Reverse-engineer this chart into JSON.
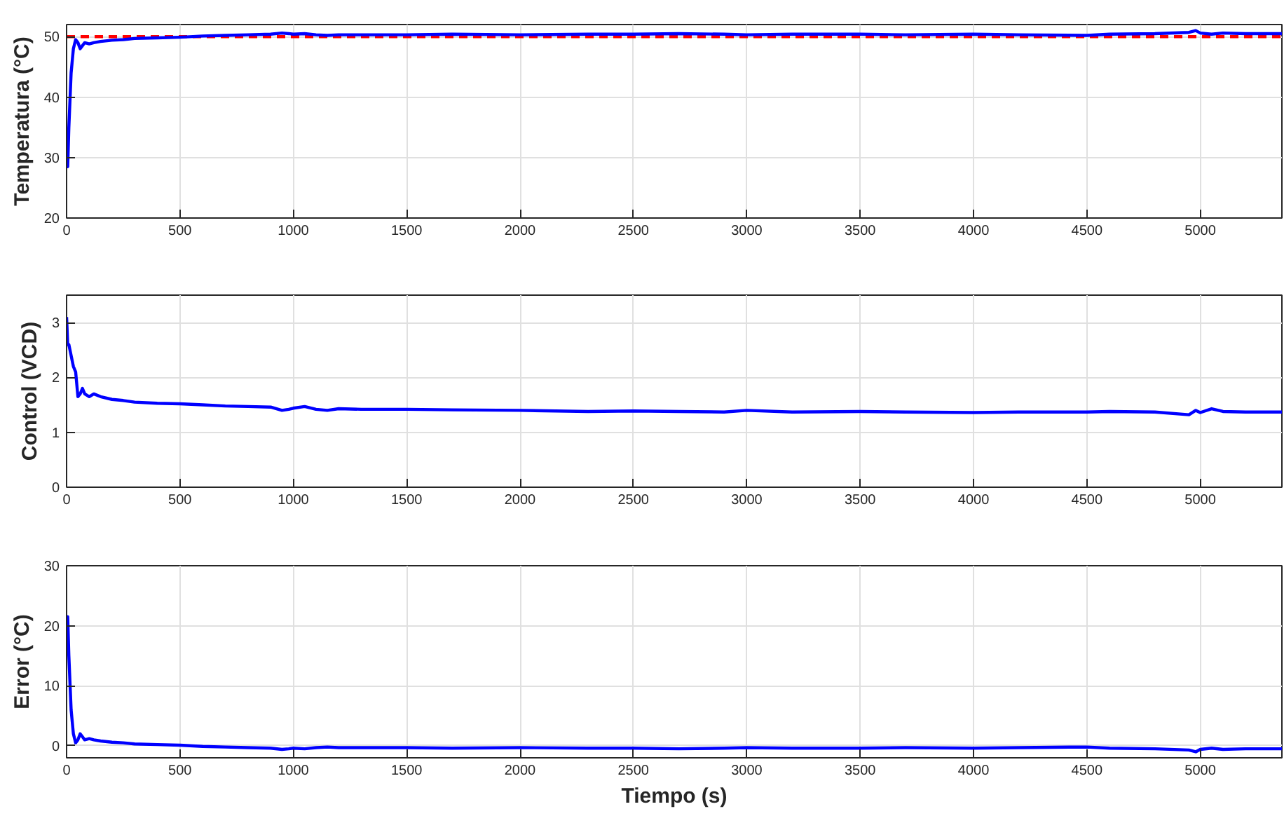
{
  "chart_data": [
    {
      "type": "line",
      "ylabel": "Temperatura (°C)",
      "xlim": [
        0,
        5360
      ],
      "xticks": [
        0,
        500,
        1000,
        1500,
        2000,
        2500,
        3000,
        3500,
        4000,
        4500,
        5000
      ],
      "ylim": [
        20,
        52
      ],
      "yticks": [
        20,
        30,
        40,
        50
      ],
      "grid": true,
      "series": [
        {
          "color": "#ff0000",
          "line_style": "dashed",
          "x": [
            0,
            5360
          ],
          "values": [
            50,
            50
          ]
        },
        {
          "color": "#0000ff",
          "line_style": "solid",
          "x": [
            0,
            5,
            10,
            20,
            30,
            40,
            50,
            60,
            70,
            80,
            100,
            120,
            150,
            200,
            250,
            300,
            400,
            500,
            600,
            700,
            800,
            900,
            950,
            980,
            1000,
            1050,
            1100,
            1150,
            1200,
            1300,
            1500,
            1700,
            2000,
            2300,
            2500,
            2700,
            2900,
            3000,
            3200,
            3500,
            3700,
            4000,
            4200,
            4500,
            4600,
            4800,
            4950,
            4980,
            5000,
            5050,
            5100,
            5200,
            5360
          ],
          "values": [
            29,
            28.5,
            35,
            44,
            48,
            49.5,
            49,
            48,
            48.5,
            49,
            48.8,
            49,
            49.2,
            49.4,
            49.5,
            49.7,
            49.8,
            49.9,
            50.1,
            50.2,
            50.3,
            50.4,
            50.6,
            50.5,
            50.4,
            50.5,
            50.3,
            50.2,
            50.3,
            50.3,
            50.3,
            50.4,
            50.3,
            50.4,
            50.4,
            50.5,
            50.4,
            50.3,
            50.4,
            50.4,
            50.3,
            50.4,
            50.3,
            50.2,
            50.4,
            50.5,
            50.7,
            51,
            50.6,
            50.4,
            50.6,
            50.5,
            50.5
          ]
        }
      ]
    },
    {
      "type": "line",
      "ylabel": "Control (VCD)",
      "xlim": [
        0,
        5360
      ],
      "xticks": [
        0,
        500,
        1000,
        1500,
        2000,
        2500,
        3000,
        3500,
        4000,
        4500,
        5000
      ],
      "ylim": [
        0,
        3.5
      ],
      "yticks": [
        0,
        1,
        2,
        3
      ],
      "grid": true,
      "series": [
        {
          "color": "#0000ff",
          "line_style": "solid",
          "x": [
            0,
            5,
            10,
            20,
            30,
            40,
            50,
            60,
            70,
            80,
            100,
            120,
            150,
            200,
            250,
            300,
            400,
            500,
            600,
            700,
            800,
            900,
            950,
            980,
            1000,
            1050,
            1100,
            1150,
            1200,
            1300,
            1500,
            1700,
            2000,
            2300,
            2500,
            2700,
            2900,
            3000,
            3200,
            3500,
            3700,
            4000,
            4200,
            4500,
            4600,
            4800,
            4950,
            4980,
            5000,
            5050,
            5100,
            5200,
            5360
          ],
          "values": [
            3.1,
            2.6,
            2.6,
            2.4,
            2.2,
            2.1,
            1.65,
            1.7,
            1.8,
            1.7,
            1.65,
            1.7,
            1.65,
            1.6,
            1.58,
            1.55,
            1.53,
            1.52,
            1.5,
            1.48,
            1.47,
            1.46,
            1.4,
            1.42,
            1.44,
            1.47,
            1.42,
            1.4,
            1.43,
            1.42,
            1.42,
            1.41,
            1.4,
            1.38,
            1.39,
            1.38,
            1.37,
            1.4,
            1.37,
            1.38,
            1.37,
            1.36,
            1.37,
            1.37,
            1.38,
            1.37,
            1.32,
            1.4,
            1.36,
            1.43,
            1.38,
            1.37,
            1.37
          ]
        }
      ]
    },
    {
      "type": "line",
      "ylabel": "Error (°C)",
      "xlabel": "Tiempo (s)",
      "xlim": [
        0,
        5360
      ],
      "xticks": [
        0,
        500,
        1000,
        1500,
        2000,
        2500,
        3000,
        3500,
        4000,
        4500,
        5000
      ],
      "ylim": [
        -2,
        30
      ],
      "yticks": [
        0,
        10,
        20,
        30
      ],
      "grid": true,
      "series": [
        {
          "color": "#0000ff",
          "line_style": "solid",
          "x": [
            0,
            5,
            10,
            20,
            30,
            40,
            50,
            60,
            70,
            80,
            100,
            120,
            150,
            200,
            250,
            300,
            400,
            500,
            600,
            700,
            800,
            900,
            950,
            980,
            1000,
            1050,
            1100,
            1150,
            1200,
            1300,
            1500,
            1700,
            2000,
            2300,
            2500,
            2700,
            2900,
            3000,
            3200,
            3500,
            3700,
            4000,
            4200,
            4500,
            4600,
            4800,
            4950,
            4980,
            5000,
            5050,
            5100,
            5200,
            5360
          ],
          "values": [
            21,
            21.5,
            15,
            6,
            2,
            0.5,
            1,
            2,
            1.5,
            1,
            1.2,
            1,
            0.8,
            0.6,
            0.5,
            0.3,
            0.2,
            0.1,
            -0.1,
            -0.2,
            -0.3,
            -0.4,
            -0.6,
            -0.5,
            -0.4,
            -0.5,
            -0.3,
            -0.2,
            -0.3,
            -0.3,
            -0.3,
            -0.4,
            -0.3,
            -0.4,
            -0.4,
            -0.5,
            -0.4,
            -0.3,
            -0.4,
            -0.4,
            -0.3,
            -0.4,
            -0.3,
            -0.2,
            -0.4,
            -0.5,
            -0.7,
            -1,
            -0.6,
            -0.4,
            -0.6,
            -0.5,
            -0.5
          ]
        }
      ]
    }
  ]
}
